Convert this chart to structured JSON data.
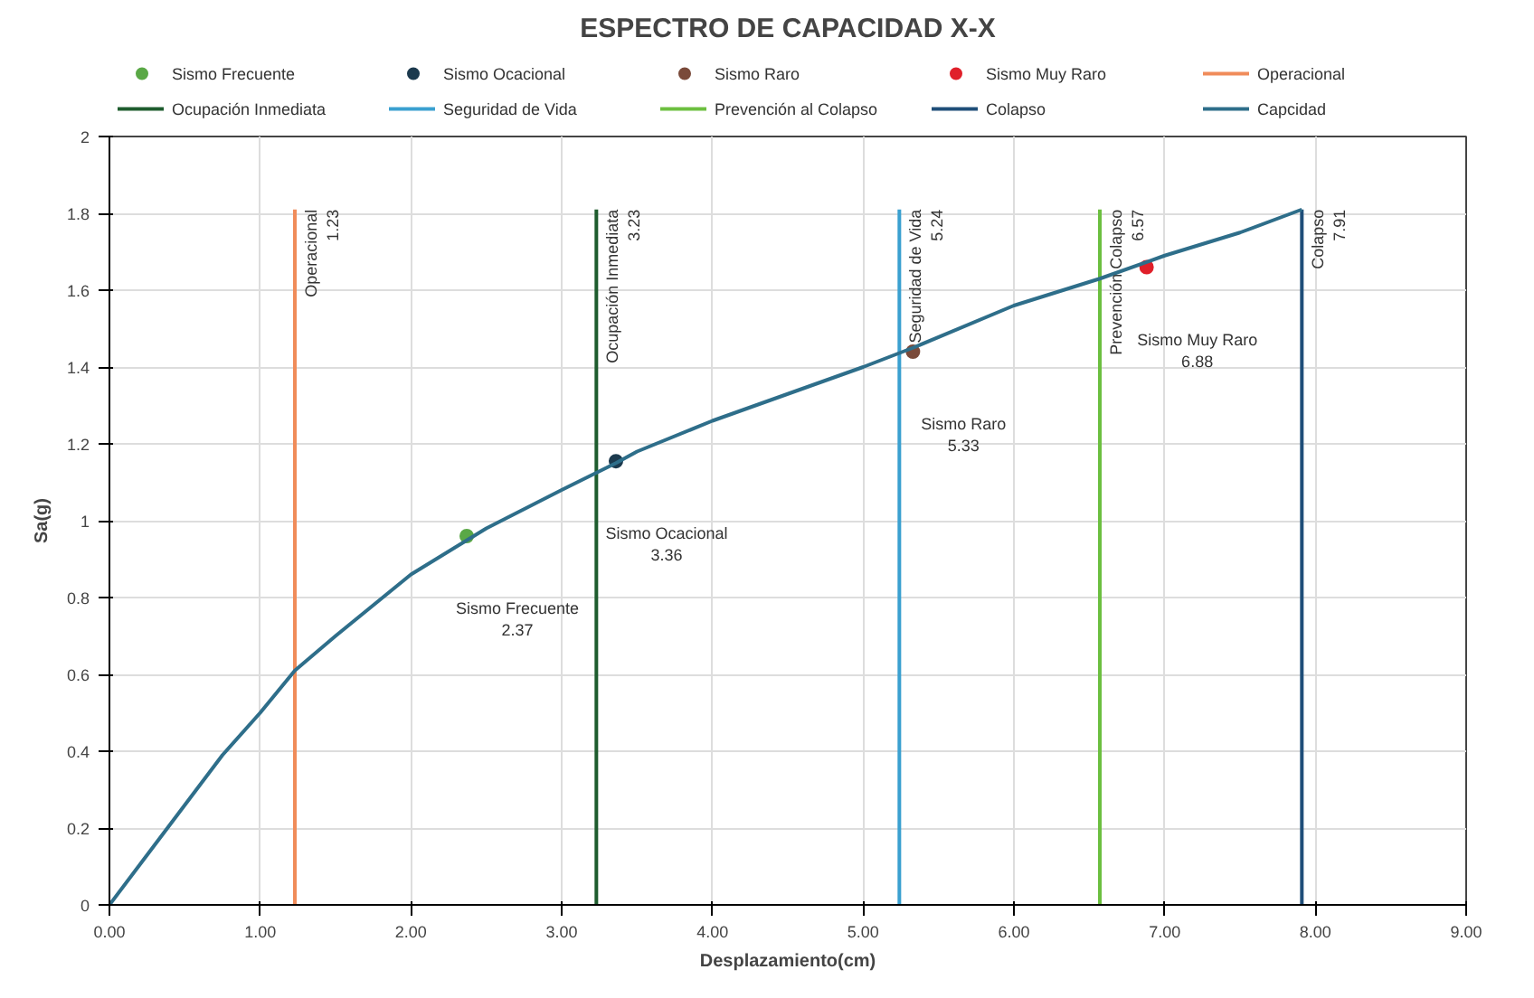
{
  "chart_data": {
    "type": "line",
    "title": "ESPECTRO DE CAPACIDAD X-X",
    "xlabel": "Desplazamiento(cm)",
    "ylabel": "Sa(g)",
    "xlim": [
      0,
      9
    ],
    "ylim": [
      0,
      2
    ],
    "xticks": [
      {
        "value": 0,
        "label": "0.00"
      },
      {
        "value": 1,
        "label": "1.00"
      },
      {
        "value": 2,
        "label": "2.00"
      },
      {
        "value": 3,
        "label": "3.00"
      },
      {
        "value": 4,
        "label": "4.00"
      },
      {
        "value": 5,
        "label": "5.00"
      },
      {
        "value": 6,
        "label": "6.00"
      },
      {
        "value": 7,
        "label": "7.00"
      },
      {
        "value": 8,
        "label": "8.00"
      },
      {
        "value": 9,
        "label": "9.00"
      }
    ],
    "yticks": [
      0,
      0.2,
      0.4,
      0.6,
      0.8,
      1,
      1.2,
      1.4,
      1.6,
      1.8,
      2
    ],
    "grid": true,
    "legend": "top",
    "line_style": "solid",
    "series": [
      {
        "name": "Sismo Frecuente",
        "type": "scatter",
        "marker": "circle",
        "color": "#5aa846",
        "x": [
          2.37
        ],
        "values": [
          0.96
        ]
      },
      {
        "name": "Sismo Ocacional",
        "type": "scatter",
        "marker": "circle",
        "color": "#1c3a4e",
        "x": [
          3.36
        ],
        "values": [
          1.155
        ]
      },
      {
        "name": "Sismo Raro",
        "type": "scatter",
        "marker": "circle",
        "color": "#7a4a3a",
        "x": [
          5.33
        ],
        "values": [
          1.44
        ]
      },
      {
        "name": "Sismo Muy Raro",
        "type": "scatter",
        "marker": "circle",
        "color": "#e0202a",
        "x": [
          6.88
        ],
        "values": [
          1.66
        ]
      },
      {
        "name": "Operacional",
        "type": "line",
        "color": "#f08c5a",
        "x": [
          1.23,
          1.23
        ],
        "values": [
          0,
          1.81
        ]
      },
      {
        "name": "Ocupación Inmediata",
        "type": "line",
        "color": "#1e5c2e",
        "x": [
          3.23,
          3.23
        ],
        "values": [
          0,
          1.81
        ]
      },
      {
        "name": "Seguridad de Vida",
        "type": "line",
        "color": "#3aa0d0",
        "x": [
          5.24,
          5.24
        ],
        "values": [
          0,
          1.81
        ]
      },
      {
        "name": "Prevención al Colapso",
        "type": "line",
        "color": "#6cbf40",
        "x": [
          6.57,
          6.57
        ],
        "values": [
          0,
          1.81
        ]
      },
      {
        "name": "Colapso",
        "type": "line",
        "color": "#1f4e79",
        "x": [
          7.91,
          7.91
        ],
        "values": [
          0,
          1.81
        ]
      },
      {
        "name": "Capcidad",
        "color": "#2e6e8a",
        "x": [
          0,
          0.25,
          0.5,
          0.75,
          1.0,
          1.23,
          1.5,
          2.0,
          2.5,
          3.0,
          3.36,
          3.5,
          4.0,
          4.5,
          5.0,
          5.33,
          6.0,
          6.57,
          7.0,
          7.5,
          7.91
        ],
        "values": [
          0,
          0.13,
          0.26,
          0.39,
          0.5,
          0.61,
          0.7,
          0.86,
          0.98,
          1.08,
          1.15,
          1.18,
          1.26,
          1.33,
          1.4,
          1.45,
          1.56,
          1.63,
          1.69,
          1.75,
          1.81
        ]
      }
    ],
    "annotations": [
      {
        "text": "Operacional\n1.23",
        "x": 1.23,
        "y": 1.81
      },
      {
        "text": "Ocupación Inmediata\n3.23",
        "x": 3.23,
        "y": 1.81
      },
      {
        "text": "Seguridad de Vida\n5.24",
        "x": 5.24,
        "y": 1.81
      },
      {
        "text": "Prevención Colapso\n6.57",
        "x": 6.57,
        "y": 1.81
      },
      {
        "text": "Colapso\n7.91",
        "x": 7.91,
        "y": 1.81
      },
      "Sismo Frecuente\n2.37",
      "Sismo Ocacional\n3.36",
      "Sismo Raro\n5.33",
      "Sismo Muy Raro\n6.88"
    ]
  }
}
